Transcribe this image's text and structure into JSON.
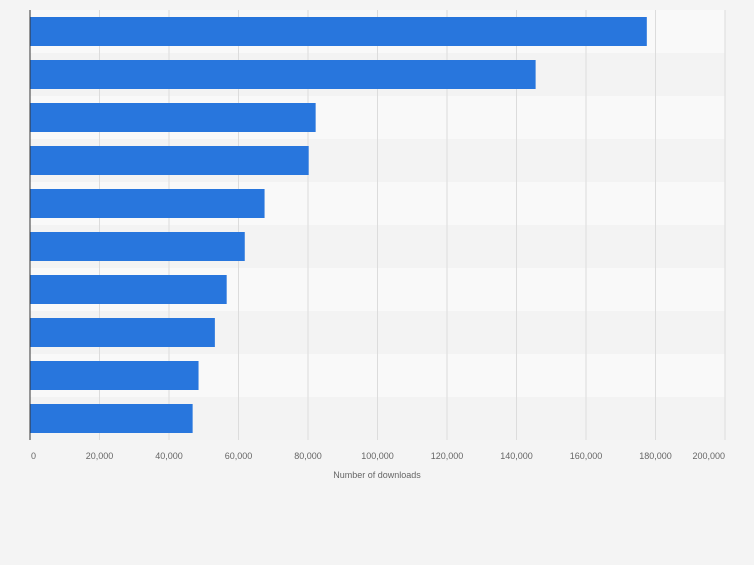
{
  "chart_data": {
    "type": "bar",
    "orientation": "horizontal",
    "title": "",
    "xlabel": "Number of downloads",
    "ylabel": "",
    "categories": [
      "",
      "",
      "",
      "",
      "",
      "",
      "",
      "",
      "",
      ""
    ],
    "values": [
      177500,
      145500,
      82200,
      80200,
      67500,
      61800,
      56600,
      53200,
      48500,
      46800
    ],
    "xlim": [
      0,
      200000
    ],
    "x_ticks": [
      0,
      20000,
      40000,
      60000,
      80000,
      100000,
      120000,
      140000,
      160000,
      180000,
      200000
    ],
    "x_tick_labels": [
      "0",
      "20,000",
      "40,000",
      "60,000",
      "80,000",
      "100,000",
      "120,000",
      "140,000",
      "160,000",
      "180,000",
      "200,000"
    ],
    "grid": "vertical",
    "legend": "none",
    "colors": {
      "bar": "#2876dd",
      "band_light": "#f9f9f9",
      "band_dark": "#f3f3f3",
      "grid": "#dcdcdc",
      "axis": "#333333",
      "tick_text": "#666666"
    }
  }
}
